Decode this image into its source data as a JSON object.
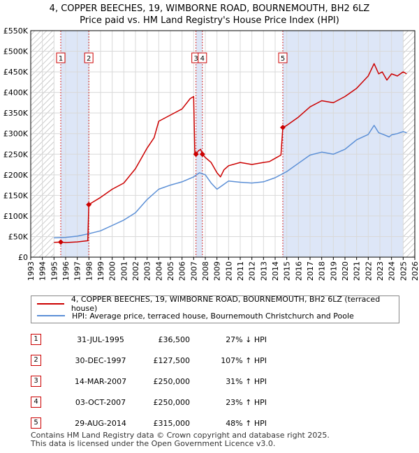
{
  "title_line1": "4, COPPER BEECHES, 19, WIMBORNE ROAD, BOURNEMOUTH, BH2 6LZ",
  "title_line2": "Price paid vs. HM Land Registry's House Price Index (HPI)",
  "colors": {
    "property": "#cc0000",
    "hpi": "#5b8fd6",
    "shade": "#dde6f7"
  },
  "chart_data": {
    "type": "line",
    "xlim": [
      1993,
      2026
    ],
    "ylim": [
      0,
      550000
    ],
    "y_ticks": [
      0,
      50000,
      100000,
      150000,
      200000,
      250000,
      300000,
      350000,
      400000,
      450000,
      500000,
      550000
    ],
    "y_tick_labels": [
      "£0",
      "£50K",
      "£100K",
      "£150K",
      "£200K",
      "£250K",
      "£300K",
      "£350K",
      "£400K",
      "£450K",
      "£500K",
      "£550K"
    ],
    "x_tick_labels": [
      "1993",
      "1994",
      "1995",
      "1996",
      "1997",
      "1998",
      "1999",
      "2000",
      "2001",
      "2002",
      "2003",
      "2004",
      "2005",
      "2006",
      "2007",
      "2008",
      "2009",
      "2010",
      "2011",
      "2012",
      "2013",
      "2014",
      "2015",
      "2016",
      "2017",
      "2018",
      "2019",
      "2020",
      "2021",
      "2022",
      "2023",
      "2024",
      "2025",
      "2026"
    ],
    "hatched_ranges": [
      [
        1993,
        1995.0
      ],
      [
        2025.0,
        2026
      ]
    ],
    "shaded_ranges": [
      [
        1995.58,
        1997.99
      ],
      [
        2007.2,
        2007.75
      ],
      [
        2014.66,
        2025.0
      ]
    ],
    "series": [
      {
        "name": "4, COPPER BEECHES, 19, WIMBORNE ROAD, BOURNEMOUTH, BH2 6LZ (terraced house)",
        "x": [
          1995.0,
          1995.58,
          1996.0,
          1997.0,
          1997.9,
          1997.99,
          1998.3,
          1999.0,
          2000.0,
          2001.0,
          2002.0,
          2003.0,
          2003.6,
          2004.0,
          2005.0,
          2006.0,
          2006.7,
          2007.0,
          2007.1,
          2007.2,
          2007.4,
          2007.6,
          2007.75,
          2008.0,
          2008.5,
          2009.0,
          2009.3,
          2009.6,
          2010.0,
          2011.0,
          2012.0,
          2013.0,
          2013.5,
          2014.0,
          2014.5,
          2014.66,
          2015.0,
          2016.0,
          2017.0,
          2018.0,
          2019.0,
          2020.0,
          2021.0,
          2021.5,
          2022.0,
          2022.5,
          2022.9,
          2023.2,
          2023.6,
          2024.0,
          2024.5,
          2025.0,
          2025.3
        ],
        "y": [
          36000,
          36500,
          35500,
          37000,
          40000,
          127500,
          133000,
          145000,
          165000,
          180000,
          215000,
          265000,
          290000,
          330000,
          345000,
          360000,
          385000,
          390000,
          250000,
          250000,
          258000,
          262000,
          250000,
          242000,
          230000,
          205000,
          195000,
          212000,
          222000,
          230000,
          225000,
          230000,
          232000,
          240000,
          248000,
          315000,
          320000,
          340000,
          365000,
          380000,
          375000,
          390000,
          410000,
          425000,
          440000,
          470000,
          445000,
          450000,
          430000,
          445000,
          440000,
          450000,
          445000
        ]
      },
      {
        "name": "HPI: Average price, terraced house, Bournemouth Christchurch and Poole",
        "x": [
          1995.0,
          1996.0,
          1997.0,
          1998.0,
          1999.0,
          2000.0,
          2001.0,
          2002.0,
          2003.0,
          2004.0,
          2005.0,
          2006.0,
          2007.0,
          2007.5,
          2008.0,
          2008.5,
          2009.0,
          2009.5,
          2010.0,
          2011.0,
          2012.0,
          2013.0,
          2014.0,
          2015.0,
          2016.0,
          2017.0,
          2018.0,
          2019.0,
          2020.0,
          2021.0,
          2022.0,
          2022.5,
          2022.9,
          2023.3,
          2023.8,
          2024.0,
          2024.5,
          2025.0,
          2025.3
        ],
        "y": [
          47000,
          48000,
          51000,
          57000,
          64000,
          77000,
          90000,
          108000,
          140000,
          165000,
          175000,
          183000,
          195000,
          205000,
          200000,
          180000,
          165000,
          175000,
          185000,
          182000,
          180000,
          183000,
          193000,
          208000,
          228000,
          248000,
          255000,
          250000,
          262000,
          285000,
          298000,
          320000,
          302000,
          298000,
          292000,
          297000,
          300000,
          305000,
          302000
        ]
      }
    ],
    "markers": [
      {
        "label": "1",
        "x": 1995.58,
        "y": 36500
      },
      {
        "label": "2",
        "x": 1997.99,
        "y": 127500
      },
      {
        "label": "3",
        "x": 2007.2,
        "y": 250000
      },
      {
        "label": "4",
        "x": 2007.75,
        "y": 250000
      },
      {
        "label": "5",
        "x": 2014.66,
        "y": 315000
      }
    ]
  },
  "legend": [
    {
      "label": "4, COPPER BEECHES, 19, WIMBORNE ROAD, BOURNEMOUTH, BH2 6LZ (terraced house)"
    },
    {
      "label": "HPI: Average price, terraced house, Bournemouth Christchurch and Poole"
    }
  ],
  "sales": [
    {
      "num": "1",
      "date": "31-JUL-1995",
      "price": "£36,500",
      "hpi": "27% ↓ HPI"
    },
    {
      "num": "2",
      "date": "30-DEC-1997",
      "price": "£127,500",
      "hpi": "107% ↑ HPI"
    },
    {
      "num": "3",
      "date": "14-MAR-2007",
      "price": "£250,000",
      "hpi": "31% ↑ HPI"
    },
    {
      "num": "4",
      "date": "03-OCT-2007",
      "price": "£250,000",
      "hpi": "23% ↑ HPI"
    },
    {
      "num": "5",
      "date": "29-AUG-2014",
      "price": "£315,000",
      "hpi": "48% ↑ HPI"
    }
  ],
  "footer_line1": "Contains HM Land Registry data © Crown copyright and database right 2025.",
  "footer_line2": "This data is licensed under the Open Government Licence v3.0."
}
